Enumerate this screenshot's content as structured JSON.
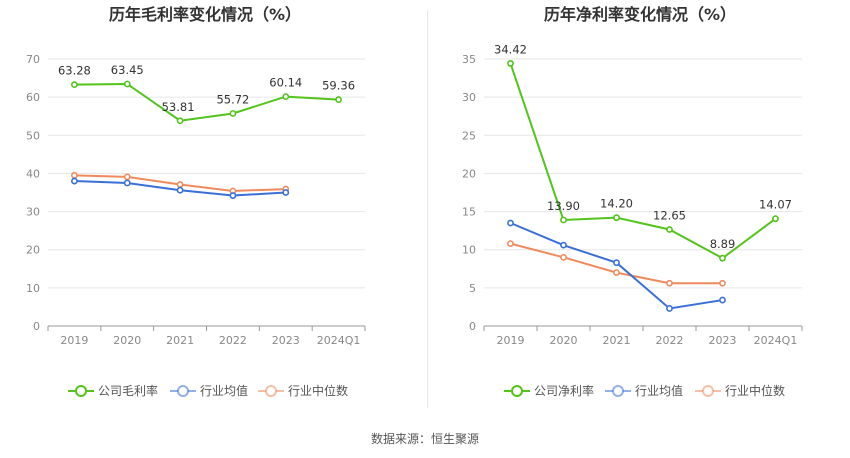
{
  "source": "数据来源：恒生聚源",
  "colors": {
    "company": "#52c41a",
    "avg": "#3a6fd8",
    "median": "#f08a5d"
  },
  "chart_data": [
    {
      "type": "line",
      "title": "历年毛利率变化情况（%）",
      "categories": [
        "2019",
        "2020",
        "2021",
        "2022",
        "2023",
        "2024Q1"
      ],
      "ylim": [
        0,
        70
      ],
      "yticks": [
        0,
        10,
        20,
        30,
        40,
        50,
        60,
        70
      ],
      "grid": true,
      "legend_position": "bottom",
      "series": [
        {
          "name": "公司毛利率",
          "values": [
            63.28,
            63.45,
            53.81,
            55.72,
            60.14,
            59.36
          ],
          "labels": [
            "63.28",
            "63.45",
            "53.81",
            "55.72",
            "60.14",
            "59.36"
          ]
        },
        {
          "name": "行业均值",
          "values": [
            38.0,
            37.5,
            35.6,
            34.2,
            35.0,
            null
          ]
        },
        {
          "name": "行业中位数",
          "values": [
            39.5,
            39.1,
            37.1,
            35.4,
            35.9,
            null
          ]
        }
      ]
    },
    {
      "type": "line",
      "title": "历年净利率变化情况（%）",
      "categories": [
        "2019",
        "2020",
        "2021",
        "2022",
        "2023",
        "2024Q1"
      ],
      "ylim": [
        0,
        35
      ],
      "yticks": [
        0,
        5,
        10,
        15,
        20,
        25,
        30,
        35
      ],
      "grid": true,
      "legend_position": "bottom",
      "series": [
        {
          "name": "公司净利率",
          "values": [
            34.42,
            13.9,
            14.2,
            12.65,
            8.89,
            14.07
          ],
          "labels": [
            "34.42",
            "13.90",
            "14.20",
            "12.65",
            "8.89",
            "14.07"
          ]
        },
        {
          "name": "行业均值",
          "values": [
            13.5,
            10.6,
            8.3,
            2.3,
            3.4,
            null
          ]
        },
        {
          "name": "行业中位数",
          "values": [
            10.8,
            9.0,
            7.0,
            5.6,
            5.6,
            null
          ]
        }
      ]
    }
  ]
}
